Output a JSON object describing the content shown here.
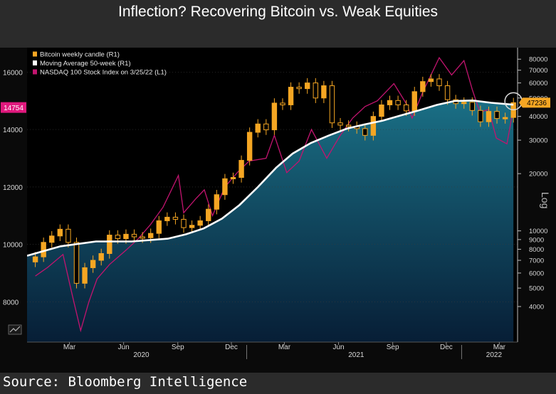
{
  "title": "Inflection? Recovering Bitcoin vs. Weak Equities",
  "source": "Source: Bloomberg Intelligence",
  "colors": {
    "figure_bg": "#2b2b2b",
    "plot_bg": "#000000",
    "candle": "#f5a623",
    "moving_average": "#ffffff",
    "nasdaq": "#c2146f",
    "area_top": "#1a6f85",
    "area_bottom": "#071e36",
    "current_left_badge": "#e0197d",
    "current_right_badge": "#f5a623"
  },
  "icons": {
    "chart_type_toggle": "line-chart-icon"
  },
  "chart_data": {
    "type": "line",
    "x_range": [
      "2019-12-20",
      "2022-04-01"
    ],
    "x_month_ticks": [
      "Mar",
      "Jun",
      "Sep",
      "Dec",
      "Mar",
      "Jun",
      "Sep",
      "Dec",
      "Mar"
    ],
    "x_month_tick_dates": [
      "2020-03-01",
      "2020-06-01",
      "2020-09-01",
      "2020-12-01",
      "2021-03-01",
      "2021-06-01",
      "2021-09-01",
      "2021-12-01",
      "2022-03-01"
    ],
    "x_year_ticks": [
      "2020",
      "2021",
      "2022"
    ],
    "x_year_tick_dates": [
      "2020-07-01",
      "2021-07-01",
      "2022-02-20"
    ],
    "left_axis": {
      "ticks": [
        "8000",
        "10000",
        "12000",
        "14000",
        "16000"
      ],
      "range": [
        6600,
        16850
      ]
    },
    "right_axis": {
      "label": "Log",
      "scale": "log",
      "range": [
        2600,
        92000
      ],
      "ticks": [
        "4000",
        "5000",
        "6000",
        "7000",
        "8000",
        "9000",
        "10000",
        "20000",
        "30000",
        "40000",
        "50000",
        "60000",
        "70000",
        "80000"
      ]
    },
    "legend": {
      "placement": "top-left",
      "entries": [
        "Bitcoin weekly candle (R1)",
        "Moving Average 50-week (R1)",
        "NASDAQ 100 Stock Index  on 3/25/22 (L1)"
      ]
    },
    "current_values": {
      "nasdaq": "14754",
      "bitcoin": "47236"
    },
    "series": [
      {
        "name": "Bitcoin weekly candle (R1)",
        "type": "candlestick",
        "axis": "right",
        "dates": [
          "2020-01-03",
          "2020-01-17",
          "2020-01-31",
          "2020-02-14",
          "2020-02-28",
          "2020-03-13",
          "2020-03-27",
          "2020-04-10",
          "2020-04-24",
          "2020-05-08",
          "2020-05-22",
          "2020-06-05",
          "2020-06-19",
          "2020-07-03",
          "2020-07-17",
          "2020-07-31",
          "2020-08-14",
          "2020-08-28",
          "2020-09-11",
          "2020-09-25",
          "2020-10-09",
          "2020-10-23",
          "2020-11-06",
          "2020-11-20",
          "2020-12-04",
          "2020-12-18",
          "2021-01-01",
          "2021-01-15",
          "2021-01-29",
          "2021-02-12",
          "2021-02-26",
          "2021-03-12",
          "2021-03-26",
          "2021-04-09",
          "2021-04-23",
          "2021-05-07",
          "2021-05-21",
          "2021-06-04",
          "2021-06-18",
          "2021-07-02",
          "2021-07-16",
          "2021-07-30",
          "2021-08-13",
          "2021-08-27",
          "2021-09-10",
          "2021-09-24",
          "2021-10-08",
          "2021-10-22",
          "2021-11-05",
          "2021-11-19",
          "2021-12-03",
          "2021-12-17",
          "2021-12-31",
          "2022-01-14",
          "2022-01-28",
          "2022-02-11",
          "2022-02-25",
          "2022-03-11",
          "2022-03-25"
        ],
        "values": [
          7300,
          8700,
          9400,
          10200,
          8700,
          5300,
          6400,
          7000,
          7600,
          9500,
          9100,
          9600,
          9300,
          9200,
          9700,
          11300,
          11800,
          11500,
          10400,
          10700,
          11300,
          13000,
          15500,
          18800,
          19100,
          23500,
          33000,
          36500,
          34000,
          47000,
          46000,
          57000,
          56000,
          60000,
          50000,
          58000,
          37000,
          36000,
          35500,
          34500,
          31800,
          40000,
          46000,
          48500,
          46000,
          42800,
          54000,
          61000,
          63000,
          58000,
          49000,
          46700,
          47500,
          43000,
          37500,
          42500,
          39000,
          39500,
          47236
        ]
      },
      {
        "name": "Moving Average 50-week (R1)",
        "type": "line",
        "axis": "right",
        "dates": [
          "2019-12-20",
          "2020-02-15",
          "2020-04-15",
          "2020-06-15",
          "2020-08-15",
          "2020-09-15",
          "2020-10-15",
          "2020-11-15",
          "2020-12-15",
          "2021-01-15",
          "2021-02-15",
          "2021-03-15",
          "2021-04-15",
          "2021-05-15",
          "2021-06-15",
          "2021-07-15",
          "2021-08-15",
          "2021-09-15",
          "2021-10-15",
          "2021-11-15",
          "2021-12-15",
          "2022-01-15",
          "2022-02-15",
          "2022-03-25"
        ],
        "values": [
          7400,
          8300,
          8800,
          8800,
          9100,
          9600,
          10300,
          11600,
          13700,
          17000,
          21500,
          25500,
          29000,
          31700,
          34500,
          36300,
          38000,
          40500,
          43000,
          46000,
          48200,
          48500,
          47200,
          46100
        ]
      },
      {
        "name": "NASDAQ 100 Stock Index  on 3/25/22 (L1)",
        "type": "line",
        "axis": "left",
        "dates": [
          "2020-01-03",
          "2020-01-24",
          "2020-02-19",
          "2020-03-05",
          "2020-03-20",
          "2020-04-03",
          "2020-04-17",
          "2020-05-08",
          "2020-06-05",
          "2020-06-26",
          "2020-07-17",
          "2020-08-07",
          "2020-09-02",
          "2020-09-11",
          "2020-10-02",
          "2020-10-16",
          "2020-10-30",
          "2020-11-20",
          "2020-12-11",
          "2020-12-31",
          "2021-01-29",
          "2021-02-12",
          "2021-03-05",
          "2021-03-26",
          "2021-04-16",
          "2021-05-12",
          "2021-06-04",
          "2021-06-25",
          "2021-07-16",
          "2021-08-06",
          "2021-09-03",
          "2021-09-24",
          "2021-10-04",
          "2021-10-22",
          "2021-11-19",
          "2021-12-10",
          "2021-12-31",
          "2022-01-14",
          "2022-01-27",
          "2022-02-11",
          "2022-02-24",
          "2022-03-14",
          "2022-03-25"
        ],
        "values": [
          8900,
          9200,
          9650,
          8300,
          7000,
          8000,
          8800,
          9300,
          9800,
          10200,
          10700,
          11300,
          12400,
          11100,
          11600,
          11900,
          11000,
          12000,
          12500,
          12900,
          13000,
          13800,
          12500,
          12900,
          14000,
          13000,
          13800,
          14400,
          14800,
          15000,
          15600,
          14900,
          14400,
          15300,
          16500,
          15900,
          16400,
          15400,
          14600,
          14700,
          13700,
          13500,
          14754
        ]
      }
    ]
  }
}
